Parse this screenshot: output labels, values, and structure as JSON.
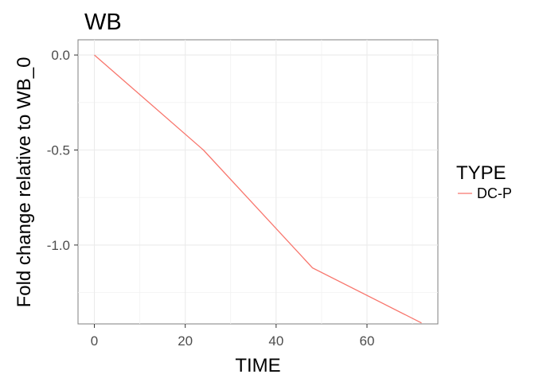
{
  "chart_data": {
    "type": "line",
    "title": "WB",
    "xlabel": "TIME",
    "ylabel": "Fold change relative to WB_0",
    "xlim": [
      -3.6,
      75.6
    ],
    "ylim": [
      -1.415,
      0.08
    ],
    "xticks": [
      0,
      20,
      40,
      60
    ],
    "xtick_labels": [
      "0",
      "20",
      "40",
      "60"
    ],
    "yticks": [
      0.0,
      -0.5,
      -1.0
    ],
    "ytick_labels": [
      "0.0",
      "-0.5",
      "-1.0"
    ],
    "grid": true,
    "legend": {
      "title": "TYPE",
      "position": "right"
    },
    "series": [
      {
        "name": "DC-P",
        "color": "#F8766D",
        "x": [
          0,
          24,
          48,
          72
        ],
        "y": [
          0.0,
          -0.5,
          -1.12,
          -1.41
        ]
      }
    ]
  }
}
